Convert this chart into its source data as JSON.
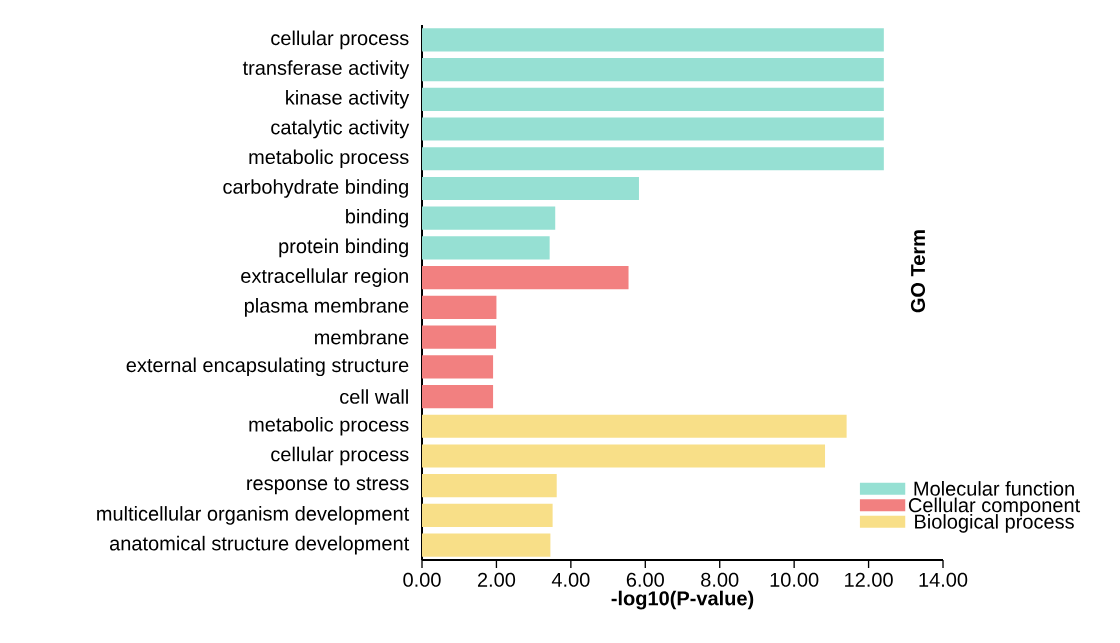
{
  "chart_data": {
    "type": "bar",
    "orientation": "horizontal",
    "xlabel": "-log10(P-value)",
    "ylabel": "GO Term",
    "categories": [
      "cellular process",
      "transferase activity",
      "kinase activity",
      "catalytic activity",
      "metabolic process",
      "carbohydrate binding",
      "binding",
      "protein binding",
      "extracellular region",
      "plasma membrane",
      "membrane",
      "external encapsulating structure",
      "cell wall",
      "metabolic process",
      "cellular process",
      "response to stress",
      "multicellular organism development",
      "anatomical structure development"
    ],
    "series": [
      {
        "name": "Molecular function",
        "color": "#96e0d3",
        "values": [
          12.41,
          12.41,
          12.41,
          12.41,
          12.41,
          5.83,
          3.58,
          3.43,
          null,
          null,
          null,
          null,
          null,
          null,
          null,
          null,
          null,
          null
        ]
      },
      {
        "name": "Cellular component",
        "color": "#f28080",
        "values": [
          null,
          null,
          null,
          null,
          null,
          null,
          null,
          null,
          5.55,
          2.0,
          1.99,
          1.91,
          1.91,
          null,
          null,
          null,
          null,
          null
        ]
      },
      {
        "name": "Biological process",
        "color": "#f8df88",
        "values": [
          null,
          null,
          null,
          null,
          null,
          null,
          null,
          null,
          null,
          null,
          null,
          null,
          null,
          11.41,
          10.83,
          3.62,
          3.51,
          3.45
        ]
      }
    ],
    "xlim": [
      0,
      14
    ],
    "xticks": [
      {
        "value": 0,
        "label": "0.00"
      },
      {
        "value": 2,
        "label": "2.00"
      },
      {
        "value": 4,
        "label": "4.00"
      },
      {
        "value": 6,
        "label": "6.00"
      },
      {
        "value": 8,
        "label": "8.00"
      },
      {
        "value": 10,
        "label": "10.00"
      },
      {
        "value": 12,
        "label": "12.00"
      },
      {
        "value": 14,
        "label": "14.00"
      }
    ],
    "legend": "bottom right"
  }
}
